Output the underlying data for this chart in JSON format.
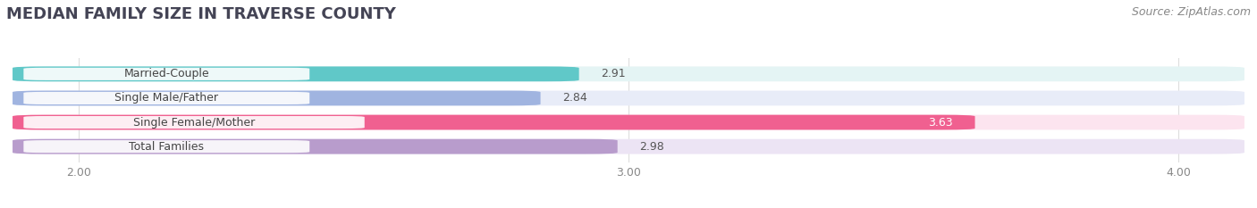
{
  "title": "MEDIAN FAMILY SIZE IN TRAVERSE COUNTY",
  "source": "Source: ZipAtlas.com",
  "categories": [
    "Married-Couple",
    "Single Male/Father",
    "Single Female/Mother",
    "Total Families"
  ],
  "values": [
    2.91,
    2.84,
    3.63,
    2.98
  ],
  "bar_colors": [
    "#60c8c8",
    "#a0b4e0",
    "#f06090",
    "#b89ccc"
  ],
  "bar_bg_colors": [
    "#e4f4f4",
    "#e8ecf8",
    "#fce4ef",
    "#ece4f4"
  ],
  "value_colors": [
    "#555555",
    "#555555",
    "#ffffff",
    "#555555"
  ],
  "xlim_min": 2.0,
  "xlim_max": 4.0,
  "xlim_display_min": 1.88,
  "xlim_display_max": 4.12,
  "xticks": [
    2.0,
    3.0,
    4.0
  ],
  "xtick_labels": [
    "2.00",
    "3.00",
    "4.00"
  ],
  "title_fontsize": 13,
  "source_fontsize": 9,
  "label_fontsize": 9,
  "value_fontsize": 9,
  "bar_height": 0.62,
  "background_color": "#ffffff"
}
